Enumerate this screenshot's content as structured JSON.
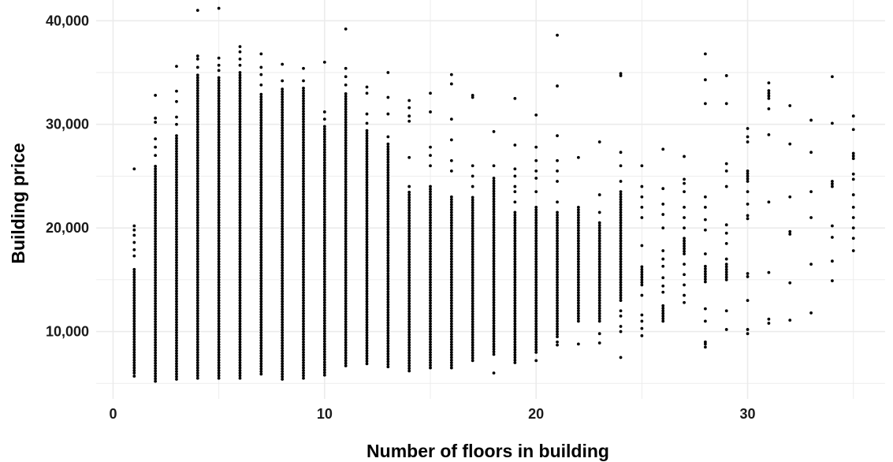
{
  "chart_data": {
    "type": "scatter",
    "title": "",
    "xlabel": "Number of floors in building",
    "ylabel": "Building price",
    "xlim": [
      -0.8,
      36.5
    ],
    "ylim": [
      3500,
      42000
    ],
    "x_ticks": [
      0,
      10,
      20,
      30
    ],
    "x_tick_labels": [
      "0",
      "10",
      "20",
      "30"
    ],
    "x_minor_ticks": [
      5,
      15,
      25,
      35
    ],
    "y_ticks": [
      10000,
      20000,
      30000,
      40000
    ],
    "y_tick_labels": [
      "10,000",
      "20,000",
      "30,000",
      "40,000"
    ],
    "y_minor_ticks": [
      5000,
      15000,
      25000,
      35000
    ],
    "grid": true,
    "legend": "none",
    "point_color": "#000000",
    "grid_color": "#ebebeb",
    "points_by_floor": [
      {
        "floor": 1,
        "dense_range": [
          6000,
          16100
        ],
        "extra": [
          5700,
          17300,
          17900,
          18600,
          19300,
          19800,
          20200,
          25700
        ]
      },
      {
        "floor": 2,
        "dense_range": [
          5200,
          26000
        ],
        "extra": [
          27000,
          27800,
          28600,
          30200,
          30600,
          32800
        ]
      },
      {
        "floor": 3,
        "dense_range": [
          5400,
          29000
        ],
        "extra": [
          30000,
          30700,
          32200,
          33200,
          35600
        ]
      },
      {
        "floor": 4,
        "dense_range": [
          5500,
          34800
        ],
        "extra": [
          35500,
          36300,
          36600,
          41000
        ]
      },
      {
        "floor": 5,
        "dense_range": [
          5500,
          34500
        ],
        "extra": [
          35200,
          35700,
          36400,
          41200
        ]
      },
      {
        "floor": 6,
        "dense_range": [
          5500,
          35000
        ],
        "extra": [
          35700,
          36300,
          37000,
          37500
        ]
      },
      {
        "floor": 7,
        "dense_range": [
          5900,
          33000
        ],
        "extra": [
          33800,
          34800,
          35500,
          36800
        ]
      },
      {
        "floor": 8,
        "dense_range": [
          5400,
          33600
        ],
        "extra": [
          34200,
          35800
        ]
      },
      {
        "floor": 9,
        "dense_range": [
          5500,
          33500
        ],
        "extra": [
          34200,
          35400
        ]
      },
      {
        "floor": 10,
        "dense_range": [
          5800,
          30000
        ],
        "extra": [
          30500,
          31200,
          36000
        ]
      },
      {
        "floor": 11,
        "dense_range": [
          6700,
          33000
        ],
        "extra": [
          33800,
          34600,
          35400,
          39200
        ]
      },
      {
        "floor": 12,
        "dense_range": [
          6900,
          29500
        ],
        "extra": [
          30100,
          31000,
          33000,
          33600
        ]
      },
      {
        "floor": 13,
        "dense_range": [
          6600,
          28200
        ],
        "extra": [
          28800,
          31000,
          32600,
          35000
        ]
      },
      {
        "floor": 14,
        "dense_range": [
          6200,
          23600
        ],
        "extra": [
          24000,
          26800,
          30300,
          30800,
          31600,
          32300
        ]
      },
      {
        "floor": 15,
        "dense_range": [
          6500,
          24200
        ],
        "extra": [
          26000,
          27000,
          27800,
          31200,
          33000
        ]
      },
      {
        "floor": 16,
        "dense_range": [
          6500,
          23200
        ],
        "extra": [
          25500,
          26500,
          28500,
          30500,
          33900,
          34800
        ]
      },
      {
        "floor": 17,
        "dense_range": [
          7200,
          23000
        ],
        "extra": [
          24000,
          25000,
          26000,
          32800,
          32600
        ]
      },
      {
        "floor": 18,
        "dense_range": [
          7800,
          25000
        ],
        "extra": [
          6000,
          26000,
          29300
        ]
      },
      {
        "floor": 19,
        "dense_range": [
          7000,
          21500
        ],
        "extra": [
          22500,
          23500,
          24000,
          25000,
          25700,
          28000,
          32500
        ]
      },
      {
        "floor": 20,
        "dense_range": [
          8000,
          22000
        ],
        "extra": [
          7200,
          23500,
          24800,
          25500,
          26500,
          27800,
          30900
        ]
      },
      {
        "floor": 21,
        "dense_range": [
          9500,
          21500
        ],
        "extra": [
          8700,
          9000,
          22500,
          24500,
          25500,
          26500,
          28900,
          33700,
          38600
        ]
      },
      {
        "floor": 22,
        "dense_range": [
          11000,
          22000
        ],
        "extra": [
          8800,
          26800
        ]
      },
      {
        "floor": 23,
        "dense_range": [
          11000,
          20500
        ],
        "extra": [
          8900,
          9800,
          21500,
          23200,
          28300
        ]
      },
      {
        "floor": 24,
        "dense_range": [
          13000,
          23700
        ],
        "extra": [
          7500,
          10000,
          10500,
          11500,
          12000,
          24500,
          26000,
          27300,
          34700,
          34900
        ]
      },
      {
        "floor": 25,
        "dense_range": [
          14500,
          16300
        ],
        "extra": [
          9600,
          10300,
          11000,
          11600,
          13500,
          18300,
          21000,
          22000,
          23000,
          24000,
          26000
        ]
      },
      {
        "floor": 26,
        "dense_range": [
          11000,
          12600
        ],
        "extra": [
          13800,
          14400,
          15200,
          16300,
          17000,
          17800,
          20000,
          21300,
          22300,
          23800,
          27600
        ]
      },
      {
        "floor": 27,
        "dense_range": [
          17500,
          19000
        ],
        "extra": [
          12800,
          13500,
          14500,
          15500,
          16500,
          20000,
          21000,
          22000,
          23500,
          24300,
          24700,
          26900
        ]
      },
      {
        "floor": 28,
        "dense_range": [
          14800,
          16500
        ],
        "extra": [
          8500,
          8800,
          9000,
          11000,
          12200,
          17500,
          19800,
          20800,
          22000,
          23000,
          32000,
          34300,
          36800
        ]
      },
      {
        "floor": 29,
        "dense_range": [
          15000,
          16500
        ],
        "extra": [
          10200,
          12000,
          17000,
          18500,
          19500,
          20300,
          24000,
          25500,
          26200,
          32000,
          34700
        ]
      },
      {
        "floor": 30,
        "dense_range": [
          24500,
          25500
        ],
        "extra": [
          9800,
          10200,
          13000,
          15300,
          15600,
          20900,
          21200,
          22300,
          23500,
          28300,
          28800,
          29600
        ]
      },
      {
        "floor": 31,
        "dense_range": [
          32500,
          33300
        ],
        "extra": [
          10800,
          11200,
          15700,
          22500,
          29000,
          31500,
          34000
        ]
      },
      {
        "floor": 32,
        "dense_range": [
          19400,
          19800
        ],
        "extra": [
          11100,
          14700,
          23000,
          28100,
          31800
        ]
      },
      {
        "floor": 33,
        "dense_range": [
          21000,
          21200
        ],
        "extra": [
          11800,
          16500,
          23500,
          27300,
          30400
        ]
      },
      {
        "floor": 34,
        "dense_range": [
          24000,
          24500
        ],
        "extra": [
          14900,
          16800,
          19100,
          20200,
          30100,
          34600
        ]
      },
      {
        "floor": 35,
        "dense_range": [
          26700,
          27200
        ],
        "extra": [
          17800,
          19000,
          20000,
          21000,
          22000,
          23200,
          24700,
          25200,
          29500,
          30800
        ]
      }
    ]
  }
}
